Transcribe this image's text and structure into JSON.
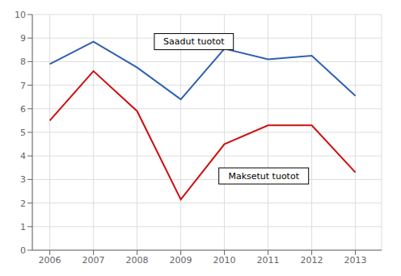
{
  "chart_data": {
    "type": "line",
    "x": [
      2006,
      2007,
      2008,
      2009,
      2010,
      2011,
      2012,
      2013
    ],
    "series": [
      {
        "color": "#3060b0",
        "values": [
          7.9,
          8.85,
          7.75,
          6.4,
          8.55,
          8.1,
          8.25,
          6.55
        ]
      },
      {
        "color": "#cc1010",
        "values": [
          5.5,
          7.6,
          5.9,
          2.15,
          4.5,
          5.3,
          5.3,
          3.3
        ]
      }
    ],
    "xlim": [
      2005.6,
      2013.6
    ],
    "xticks": [
      2006,
      2007,
      2008,
      2009,
      2010,
      2011,
      2012,
      2013
    ],
    "ylim": [
      0,
      10
    ],
    "yticks": [
      0,
      1,
      2,
      3,
      4,
      5,
      6,
      7,
      8,
      9,
      10
    ],
    "grid": true,
    "annotations": [
      {
        "text": "Saadut tuotot",
        "x": 2009.3,
        "y": 8.85
      },
      {
        "text": "Maksetut tuotot",
        "x": 2010.9,
        "y": 3.15
      }
    ]
  }
}
